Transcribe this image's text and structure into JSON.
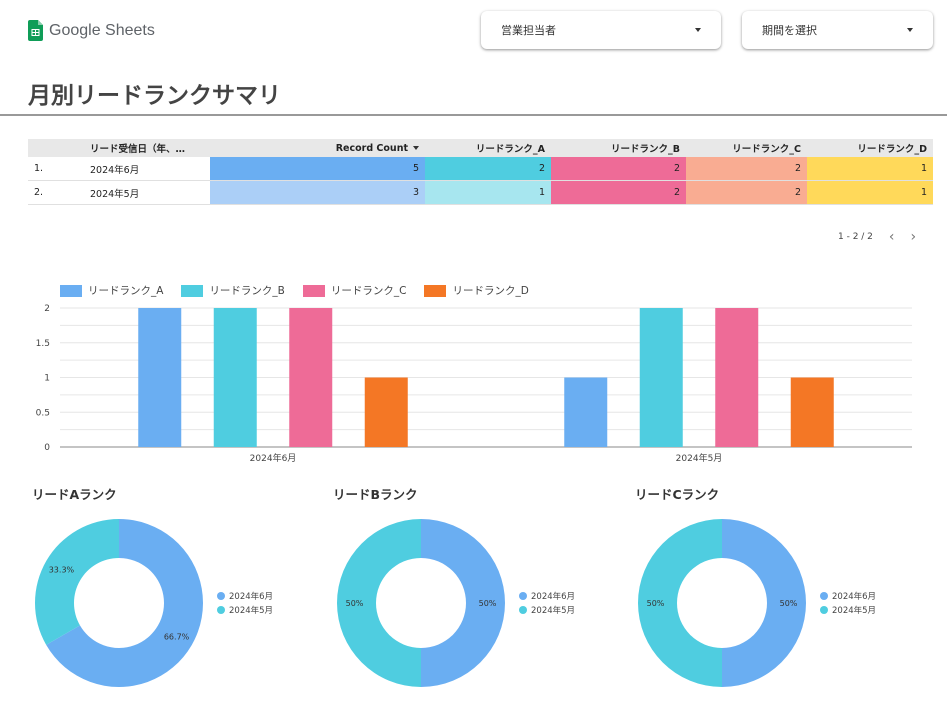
{
  "header": {
    "logo_text": "Google Sheets",
    "dropdowns": [
      {
        "label": "営業担当者"
      },
      {
        "label": "期間を選択"
      }
    ]
  },
  "page_title": "月別リードランクサマリ",
  "colors": {
    "A": "#6aaef2",
    "B": "#4fcde0",
    "C": "#ee6b97",
    "D": "#f47725",
    "logo": "#0f9d58"
  },
  "table": {
    "headers": [
      "",
      "リード受信日（年、…",
      "Record Count",
      "リードランク_A",
      "リードランク_B",
      "リードランク_C",
      "リードランク_D"
    ],
    "rows": [
      {
        "idx": "1.",
        "date": "2024年6月",
        "rc": "5",
        "a": "2",
        "b": "2",
        "c": "2",
        "d": "1"
      },
      {
        "idx": "2.",
        "date": "2024年5月",
        "rc": "3",
        "a": "1",
        "b": "2",
        "c": "2",
        "d": "1"
      }
    ],
    "pager": "1 - 2 / 2"
  },
  "chart_data": [
    {
      "type": "bar",
      "categories": [
        "2024年6月",
        "2024年5月"
      ],
      "series": [
        {
          "name": "リードランク_A",
          "values": [
            2,
            1
          ]
        },
        {
          "name": "リードランク_B",
          "values": [
            2,
            2
          ]
        },
        {
          "name": "リードランク_C",
          "values": [
            2,
            2
          ]
        },
        {
          "name": "リードランク_D",
          "values": [
            1,
            1
          ]
        }
      ],
      "yticks": [
        "0",
        "0.5",
        "1",
        "1.5",
        "2"
      ],
      "ylim": [
        0,
        2
      ],
      "grid": true,
      "legend": "top-left"
    },
    {
      "type": "pie",
      "title": "リードAランク",
      "labels": [
        "2024年6月",
        "2024年5月"
      ],
      "values": [
        66.7,
        33.3
      ],
      "value_labels": [
        "66.7%",
        "33.3%"
      ],
      "donut": true
    },
    {
      "type": "pie",
      "title": "リードBランク",
      "labels": [
        "2024年6月",
        "2024年5月"
      ],
      "values": [
        50,
        50
      ],
      "value_labels": [
        "50%",
        "50%"
      ],
      "donut": true
    },
    {
      "type": "pie",
      "title": "リードCランク",
      "labels": [
        "2024年6月",
        "2024年5月"
      ],
      "values": [
        50,
        50
      ],
      "value_labels": [
        "50%",
        "50%"
      ],
      "donut": true
    }
  ]
}
